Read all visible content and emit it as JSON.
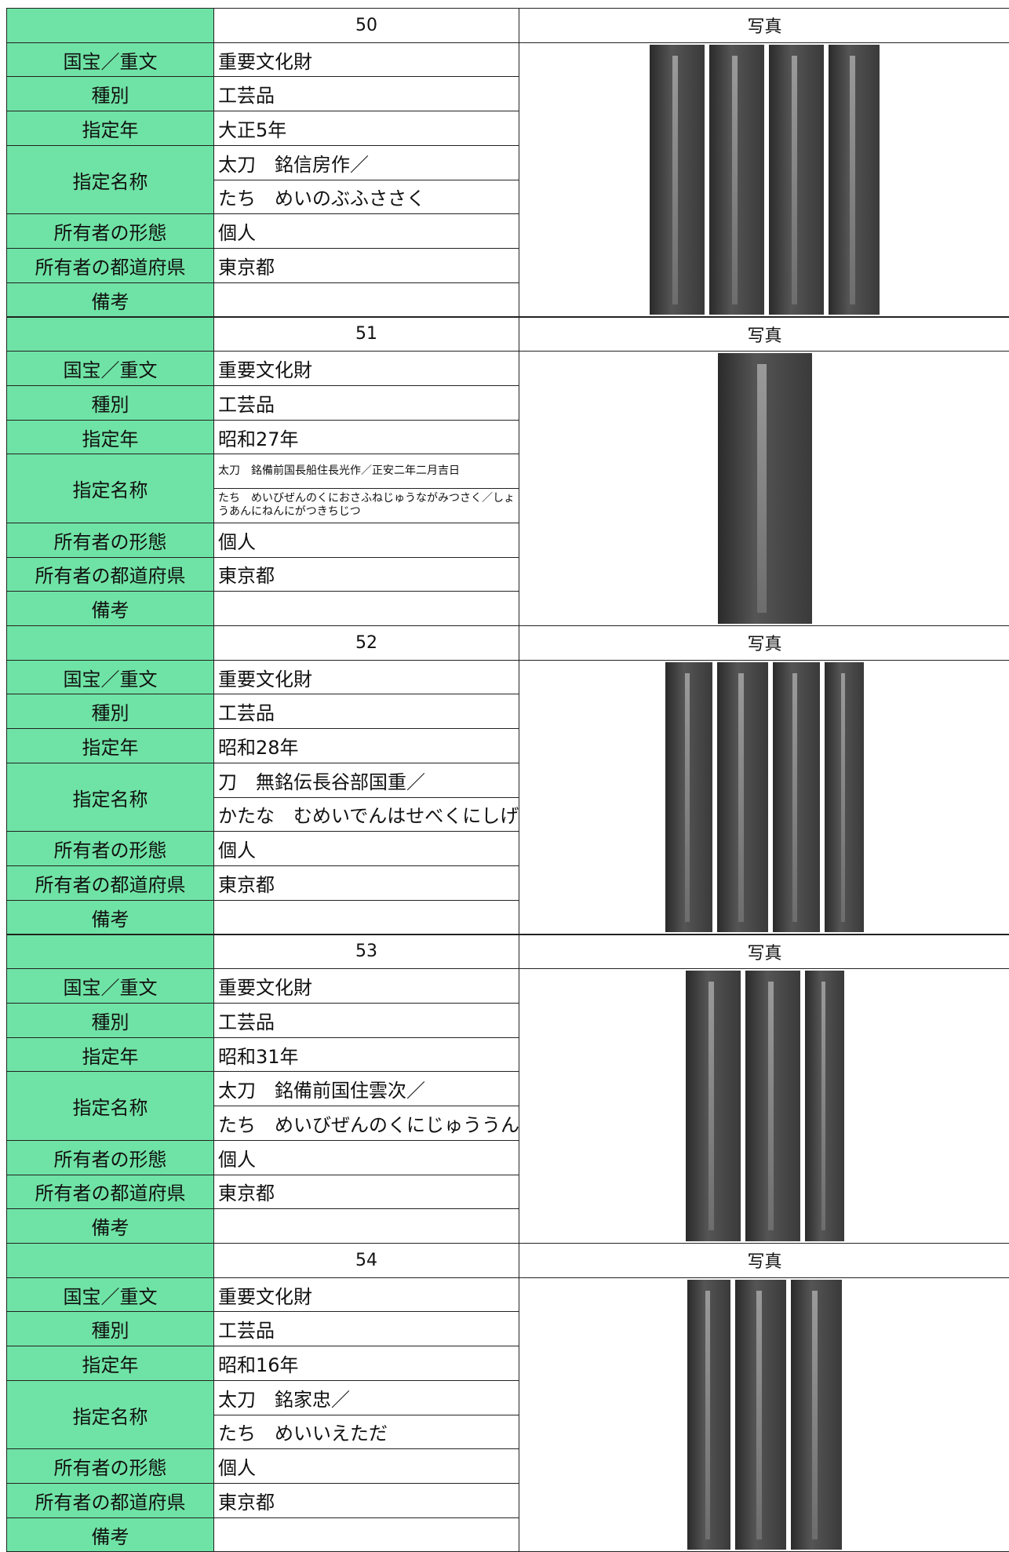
{
  "labels": [
    "国宝／重文",
    "種別",
    "指定年",
    "指定名称",
    "所有者の形態",
    "所有者の都道府県",
    "備考"
  ],
  "photo_header": "写真",
  "items": [
    {
      "number": "50",
      "designation": "重要文化財",
      "category": "工芸品",
      "year": "大正5年",
      "name": "太刀　銘信房作／",
      "reading": "たち　めいのぶふささく",
      "owner_type": "個人",
      "prefecture": "東京都"
    },
    {
      "number": "51",
      "designation": "重要文化財",
      "category": "工芸品",
      "year": "昭和27年",
      "name": "太刀　銘備前国長船住長光作／正安二年二月吉日",
      "reading": "たち　めいびぜんのくにおさふねじゅうながみつさく／しょうあんにねんにがつきちじつ",
      "owner_type": "個人",
      "prefecture": "東京都"
    },
    {
      "number": "52",
      "designation": "重要文化財",
      "category": "工芸品",
      "year": "昭和28年",
      "name": "刀　無銘伝長谷部国重／",
      "reading": "かたな　むめいでんはせべくにしげ",
      "owner_type": "個人",
      "prefecture": "東京都"
    },
    {
      "number": "53",
      "designation": "重要文化財",
      "category": "工芸品",
      "year": "昭和31年",
      "name": "太刀　銘備前国住雲次／",
      "reading": "たち　めいびぜんのくにじゅううんじ",
      "owner_type": "個人",
      "prefecture": "東京都"
    },
    {
      "number": "54",
      "designation": "重要文化財",
      "category": "工芸品",
      "year": "昭和16年",
      "name": "太刀　銘家忠／",
      "reading": "たち　めいいえただ",
      "owner_type": "個人",
      "prefecture": "東京都"
    }
  ]
}
